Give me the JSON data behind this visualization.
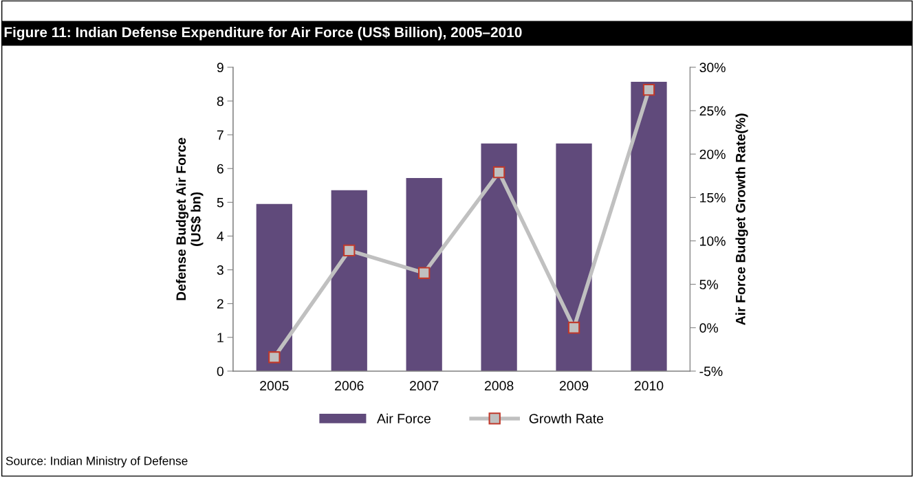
{
  "chart_data": {
    "type": "bar",
    "title": "Figure 11: Indian Defense Expenditure for Air Force (US$ Billion), 2005–2010",
    "categories": [
      "2005",
      "2006",
      "2007",
      "2008",
      "2009",
      "2010"
    ],
    "series": [
      {
        "name": "Air Force",
        "color": "#604a7b",
        "values": [
          4.95,
          5.36,
          5.72,
          6.74,
          6.74,
          8.57
        ]
      },
      {
        "name": "Growth Rate",
        "type": "line",
        "axis": "y2",
        "color": "#c0c0c0",
        "values": [
          -3.4,
          8.9,
          6.3,
          17.9,
          0,
          27.4
        ]
      }
    ],
    "ylabel": "Defense Budget Air Force\n(US$ bn)",
    "y2label": "Air Force Budget Growth Rate(%)",
    "ylim": [
      0,
      9
    ],
    "yticks": [
      0,
      1,
      2,
      3,
      4,
      5,
      6,
      7,
      8,
      9
    ],
    "y2lim": [
      -5,
      30
    ],
    "y2ticks": [
      {
        "value": -5,
        "label": "-5%"
      },
      {
        "value": 0,
        "label": "0%"
      },
      {
        "value": 5,
        "label": "5%"
      },
      {
        "value": 10,
        "label": "10%"
      },
      {
        "value": 15,
        "label": "15%"
      },
      {
        "value": 20,
        "label": "20%"
      },
      {
        "value": 25,
        "label": "25%"
      },
      {
        "value": 30,
        "label": "30%"
      }
    ],
    "marker": "square",
    "grid": false,
    "legend": "bottom",
    "annotations": [
      "Source: Indian Ministry of Defense"
    ]
  }
}
